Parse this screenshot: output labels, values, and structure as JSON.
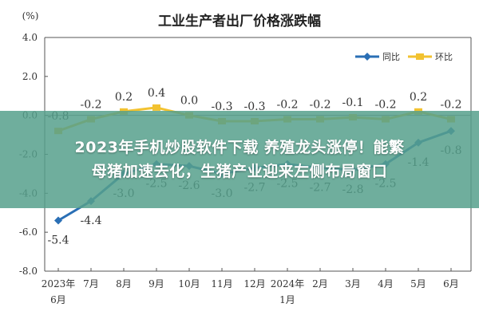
{
  "overlay": {
    "line1": "2023年手机炒股软件下载 养殖龙头涨停！能繁",
    "line2": "母猪加速去化，生猪产业迎来左侧布局窗口"
  },
  "chart_data": {
    "type": "line",
    "title": "工业生产者出厂价格涨跌幅",
    "ylabel": "(%)",
    "xlabel": "",
    "ylim": [
      -8.0,
      4.0
    ],
    "yticks": [
      "4.0",
      "2.0",
      "0.0",
      "-2.0",
      "-4.0",
      "-6.0",
      "-8.0"
    ],
    "ytick_values": [
      4,
      2,
      0,
      -2,
      -4,
      -6,
      -8
    ],
    "categories": [
      [
        "2023年",
        "6月"
      ],
      [
        "7月"
      ],
      [
        "8月"
      ],
      [
        "9月"
      ],
      [
        "10月"
      ],
      [
        "11月"
      ],
      [
        "12月"
      ],
      [
        "2024年",
        "1月"
      ],
      [
        "2月"
      ],
      [
        "3月"
      ],
      [
        "4月"
      ],
      [
        "5月"
      ],
      [
        "6月"
      ]
    ],
    "grid": false,
    "legend_position": "top-right",
    "series": [
      {
        "name": "同比",
        "color": "#2a6fb5",
        "values": [
          -5.4,
          -4.4,
          -3.0,
          -2.5,
          -2.6,
          -3.0,
          -2.7,
          -2.5,
          -2.7,
          -2.8,
          -2.5,
          -1.4,
          -0.8
        ],
        "labels": [
          "-5.4",
          "-4.4",
          "-3.0",
          "-2.5",
          "-2.6",
          "-3.0",
          "-2.7",
          "-2.5",
          "-2.7",
          "-2.8",
          "-2.5",
          "-1.4",
          "-0.8"
        ],
        "label_position": [
          "below",
          "below",
          "below",
          "below",
          "below",
          "below",
          "below",
          "below",
          "below",
          "below",
          "below",
          "below",
          "below"
        ]
      },
      {
        "name": "环比",
        "color": "#f2c230",
        "values": [
          -0.8,
          -0.2,
          0.2,
          0.4,
          0.0,
          -0.3,
          -0.3,
          -0.2,
          -0.2,
          -0.1,
          -0.2,
          0.2,
          -0.2
        ],
        "labels": [
          "-0.8",
          "-0.2",
          "0.2",
          "0.4",
          "0.0",
          "-0.3",
          "-0.3",
          "-0.2",
          "-0.2",
          "-0.1",
          "-0.2",
          "0.2",
          "-0.2"
        ],
        "label_position": [
          "above",
          "above",
          "above",
          "above",
          "above",
          "above",
          "above",
          "above",
          "above",
          "above",
          "above",
          "above",
          "above"
        ]
      }
    ]
  }
}
